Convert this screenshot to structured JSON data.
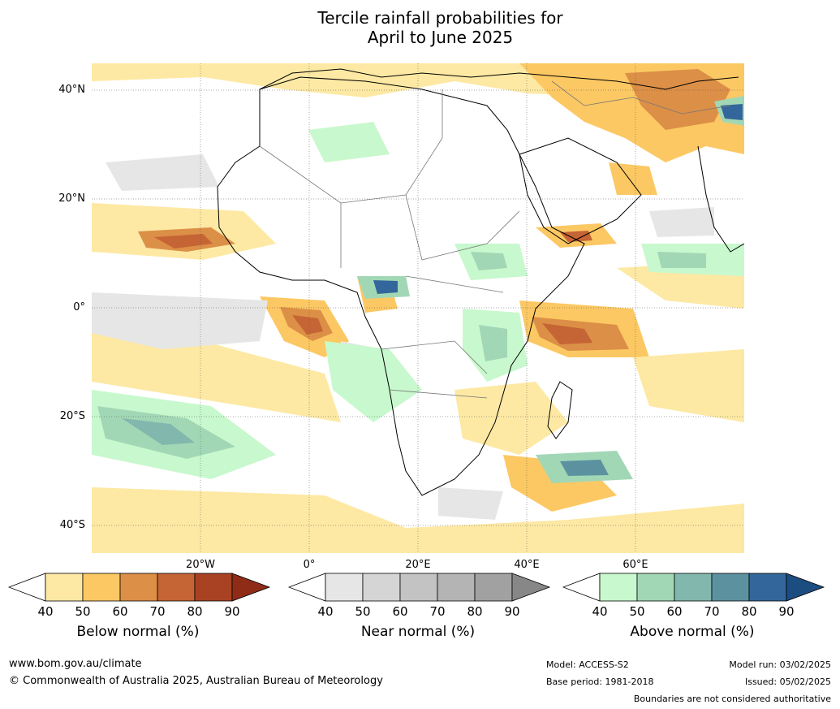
{
  "title": [
    "Tercile rainfall probabilities for",
    "April to June 2025"
  ],
  "lat_labels": [
    "40°N",
    "20°N",
    "0°",
    "20°S",
    "40°S"
  ],
  "lon_labels": [
    "20°W",
    "0°",
    "20°E",
    "40°E",
    "60°E"
  ],
  "colorbars": [
    {
      "label": "Below normal (%)",
      "ticks": [
        "40",
        "50",
        "60",
        "70",
        "80",
        "90"
      ],
      "colors": [
        "#ffffff",
        "#fde9a4",
        "#fcc863",
        "#dc8f46",
        "#c56434",
        "#a84223",
        "#8e2c17"
      ]
    },
    {
      "label": "Near normal (%)",
      "ticks": [
        "40",
        "50",
        "60",
        "70",
        "80",
        "90"
      ],
      "colors": [
        "#ffffff",
        "#e6e6e6",
        "#d5d5d5",
        "#c3c3c3",
        "#b4b4b4",
        "#a1a1a1",
        "#878787"
      ]
    },
    {
      "label": "Above normal (%)",
      "ticks": [
        "40",
        "50",
        "60",
        "70",
        "80",
        "90"
      ],
      "colors": [
        "#ffffff",
        "#c8f8cd",
        "#a2d7b6",
        "#82b7ad",
        "#5c92a0",
        "#33669a",
        "#1c4d80"
      ]
    }
  ],
  "footer": {
    "url": "www.bom.gov.au/climate",
    "copyright": "© Commonwealth of Australia 2025, Australian Bureau of Meteorology",
    "model": "Model: ACCESS-S2",
    "base_period": "Base period: 1981-2018",
    "model_run": "Model run: 03/02/2025",
    "issued": "Issued: 05/02/2025",
    "disclaimer": "Boundaries are not considered authoritative"
  }
}
